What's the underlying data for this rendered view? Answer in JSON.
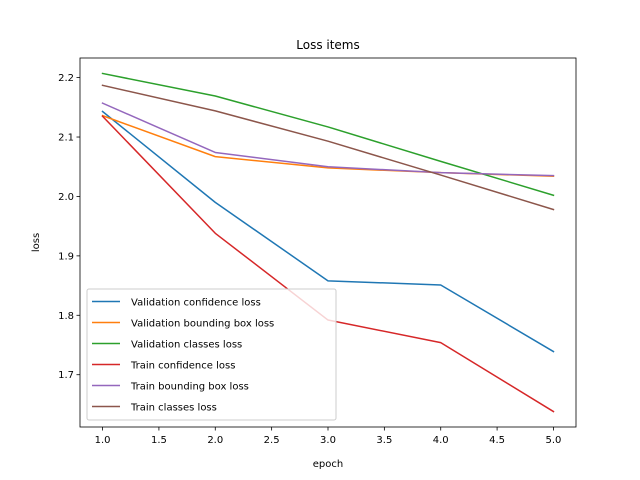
{
  "chart_data": {
    "type": "line",
    "title": "Loss items",
    "xlabel": "epoch",
    "ylabel": "loss",
    "x": [
      1,
      2,
      3,
      4,
      5
    ],
    "xlim": [
      0.8,
      5.2
    ],
    "ylim": [
      1.612,
      2.233
    ],
    "xticks": [
      "1.0",
      "1.5",
      "2.0",
      "2.5",
      "3.0",
      "3.5",
      "4.0",
      "4.5",
      "5.0"
    ],
    "yticks": [
      "1.7",
      "1.8",
      "1.9",
      "2.0",
      "2.1",
      "2.2"
    ],
    "grid": false,
    "legend_position": "lower-left",
    "series": [
      {
        "name": "Validation confidence loss",
        "color": "#1f77b4",
        "values": [
          2.143,
          1.99,
          1.858,
          1.851,
          1.739
        ]
      },
      {
        "name": "Validation bounding box loss",
        "color": "#ff7f0e",
        "values": [
          2.136,
          2.067,
          2.048,
          2.04,
          2.034
        ]
      },
      {
        "name": "Validation classes loss",
        "color": "#2ca02c",
        "values": [
          2.207,
          2.169,
          2.117,
          2.059,
          2.002
        ]
      },
      {
        "name": "Train confidence loss",
        "color": "#d62728",
        "values": [
          2.135,
          1.938,
          1.792,
          1.754,
          1.638
        ]
      },
      {
        "name": "Train bounding box loss",
        "color": "#9467bd",
        "values": [
          2.157,
          2.074,
          2.05,
          2.04,
          2.035
        ]
      },
      {
        "name": "Train classes loss",
        "color": "#8c564b",
        "values": [
          2.187,
          2.144,
          2.093,
          2.036,
          1.978
        ]
      }
    ]
  }
}
